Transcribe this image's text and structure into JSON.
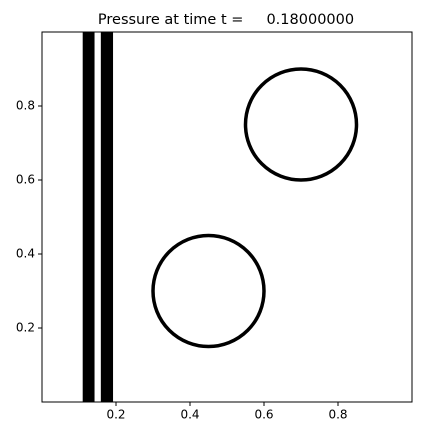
{
  "chart_data": {
    "type": "field",
    "title": "Pressure at time t =     0.18000000",
    "xlim": [
      0,
      1
    ],
    "ylim": [
      0,
      1
    ],
    "xticks": [
      0.2,
      0.4,
      0.6,
      0.8
    ],
    "yticks": [
      0.2,
      0.4,
      0.6,
      0.8
    ],
    "color": "#000000",
    "bars": [
      {
        "x0": 0.11,
        "x1": 0.142
      },
      {
        "x0": 0.159,
        "x1": 0.192
      }
    ],
    "circles": [
      {
        "cx": 0.7,
        "cy": 0.75,
        "r": 0.15
      },
      {
        "cx": 0.45,
        "cy": 0.3,
        "r": 0.15
      }
    ]
  }
}
